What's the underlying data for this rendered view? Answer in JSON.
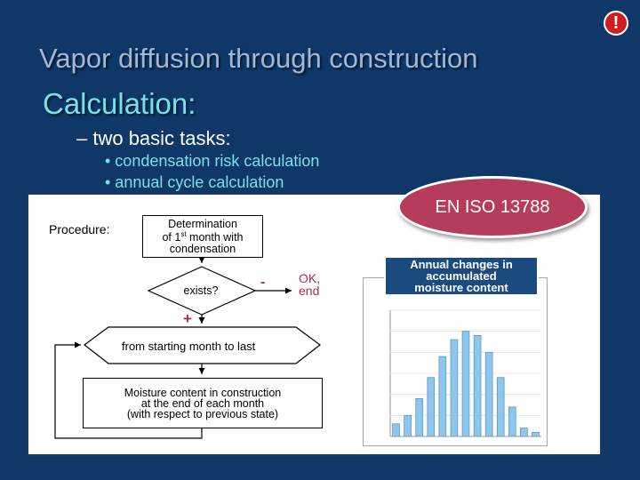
{
  "slide": {
    "title": "Vapor diffusion through construction",
    "subtitle": "Calculation:",
    "task_heading": "– two basic tasks:",
    "bullets": [
      "• condensation risk calculation",
      "• annual cycle calculation"
    ],
    "badge": "EN ISO 13788",
    "warning_glyph": "!"
  },
  "flowchart": {
    "procedure_label": "Procedure:",
    "box1_line1": "Determination",
    "box1_line2_pre": "of 1",
    "box1_line2_sup": "st",
    "box1_line2_post": " month with",
    "box1_line3": "condensation",
    "decision_label": "exists?",
    "minus_sign": "-",
    "plus_sign": "+",
    "ok_line1": "OK,",
    "ok_line2": "end",
    "loop_label": "from starting month to last",
    "box2_line1": "Moisture content in construction",
    "box2_line2": "at the end of each month",
    "box2_line3": "(with respect to previous state)"
  },
  "annual_label": {
    "line1": "Annual changes in",
    "line2": "accumulated",
    "line3": "moisture content"
  },
  "chart_data": {
    "type": "bar",
    "values": [
      0.03,
      0.05,
      0.09,
      0.14,
      0.19,
      0.23,
      0.25,
      0.24,
      0.2,
      0.14,
      0.07,
      0.02,
      0.01
    ],
    "ylim": [
      0,
      0.3
    ]
  },
  "colors": {
    "background": "#0f3868",
    "title": "#9fb8d6",
    "accent_cyan": "#78e0e6",
    "badge": "#b63d5a",
    "highlight_red": "#b02858",
    "bar_fill": "#8ec7ee",
    "bar_stroke": "#5d97c2"
  }
}
